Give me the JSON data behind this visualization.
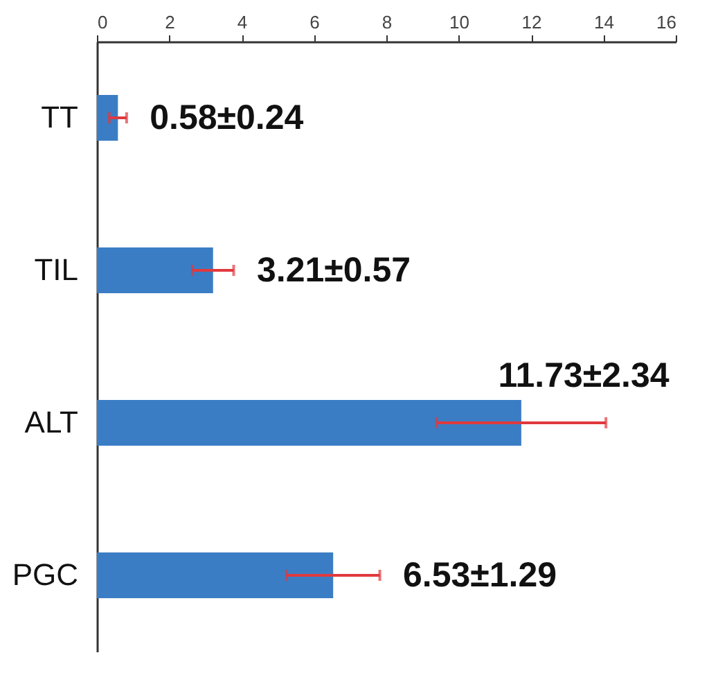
{
  "chart_data": {
    "type": "bar",
    "orientation": "horizontal",
    "categories": [
      "TT",
      "TIL",
      "ALT",
      "PGC"
    ],
    "values": [
      0.58,
      3.21,
      11.73,
      6.53
    ],
    "errors": [
      0.24,
      0.57,
      2.34,
      1.29
    ],
    "value_labels": [
      "0.58±0.24",
      "3.21±0.57",
      "11.73±2.34",
      "6.53±1.29"
    ],
    "color": "#3b7dc4",
    "xlim": [
      0,
      16
    ],
    "xticks": [
      0,
      2,
      4,
      6,
      8,
      10,
      12,
      14,
      16
    ],
    "grid": false
  }
}
